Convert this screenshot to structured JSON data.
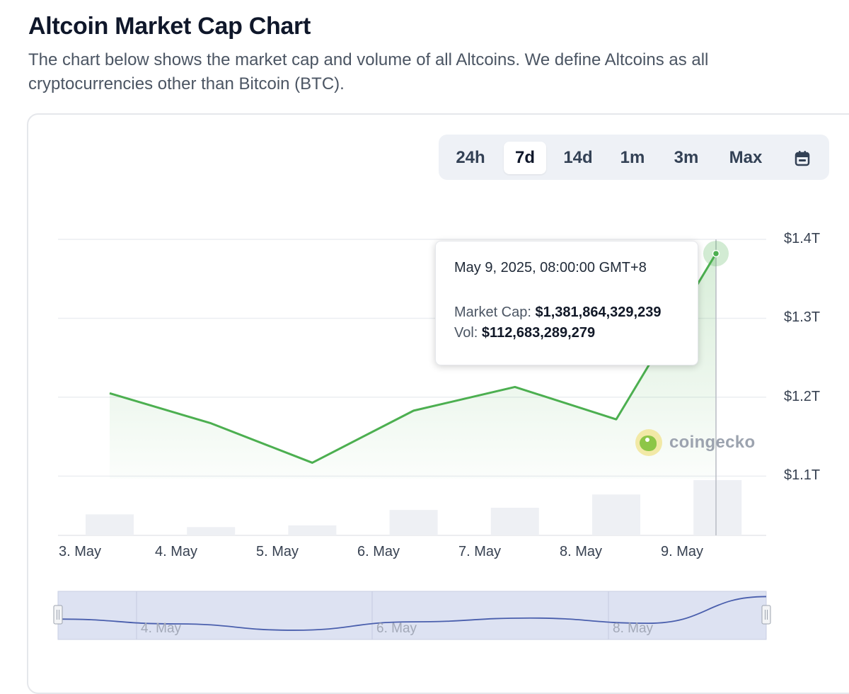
{
  "page": {
    "title": "Altcoin Market Cap Chart",
    "description": "The chart below shows the market cap and volume of all Altcoins. We define Altcoins as all cryptocurrencies other than Bitcoin (BTC)."
  },
  "range_selector": {
    "options": [
      "24h",
      "7d",
      "14d",
      "1m",
      "3m",
      "Max"
    ],
    "selected": "7d",
    "calendar_icon": "calendar-icon"
  },
  "tooltip": {
    "date": "May 9, 2025, 08:00:00 GMT+8",
    "market_cap_label": "Market Cap:",
    "market_cap_value": "$1,381,864,329,239",
    "vol_label": "Vol:",
    "vol_value": "$112,683,289,279"
  },
  "watermark": {
    "text": "coingecko"
  },
  "navigator": {
    "labels": [
      "4. May",
      "6. May",
      "8. May"
    ]
  },
  "colors": {
    "line": "#4caf50",
    "area_top": "#d8efd8",
    "volume_bar": "#eef0f4",
    "navigator_fill": "#dde2f2",
    "navigator_line": "#4a5fad",
    "accent_active": "#ffffff"
  },
  "chart_data": {
    "type": "line",
    "x": [
      "3. May",
      "4. May",
      "5. May",
      "6. May",
      "7. May",
      "8. May",
      "9. May"
    ],
    "x_ticks": [
      "3. May",
      "4. May",
      "5. May",
      "6. May",
      "7. May",
      "8. May",
      "9. May"
    ],
    "series": [
      {
        "kind": "line-area",
        "points": [
          {
            "x": "May 3",
            "y": 1.205
          },
          {
            "x": "May 4",
            "y": 1.167
          },
          {
            "x": "May 5",
            "y": 1.117
          },
          {
            "x": "May 6",
            "y": 1.183
          },
          {
            "x": "May 7",
            "y": 1.213
          },
          {
            "x": "May 8",
            "y": 1.172
          },
          {
            "x": "May 9",
            "y": 1.382
          }
        ]
      },
      {
        "kind": "volume-bars",
        "values": [
          0.38,
          0.15,
          0.18,
          0.46,
          0.5,
          0.74,
          1.0
        ]
      }
    ],
    "y_ticks": [
      "$1.1T",
      "$1.2T",
      "$1.3T",
      "$1.4T"
    ],
    "ylim": [
      1.025,
      1.4
    ],
    "grid": true
  }
}
